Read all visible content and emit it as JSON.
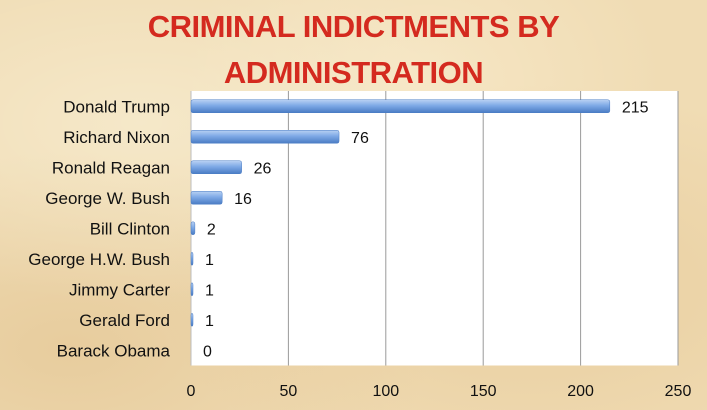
{
  "chart_data": {
    "type": "bar",
    "orientation": "horizontal",
    "title_lines": [
      "CRIMINAL INDICTMENTS BY",
      "ADMINISTRATION"
    ],
    "categories": [
      "Donald Trump",
      "Richard Nixon",
      "Ronald Reagan",
      "George W. Bush",
      "Bill Clinton",
      "George H.W. Bush",
      "Jimmy Carter",
      "Gerald Ford",
      "Barack Obama"
    ],
    "values": [
      215,
      76,
      26,
      16,
      2,
      1,
      1,
      1,
      0
    ],
    "xlim": [
      0,
      250
    ],
    "xticks": [
      0,
      50,
      100,
      150,
      200,
      250
    ],
    "xlabel": "",
    "ylabel": "",
    "grid": "vertical",
    "legend": "none",
    "data_labels": true,
    "colors": {
      "title": "#d42a1f",
      "bar": "#6d9de0",
      "bar_highlight": "#b9d1f3",
      "bar_shadow": "#4a7cc4",
      "plot_bg": "#ffffff",
      "gridline": "#9a9a9a"
    }
  }
}
